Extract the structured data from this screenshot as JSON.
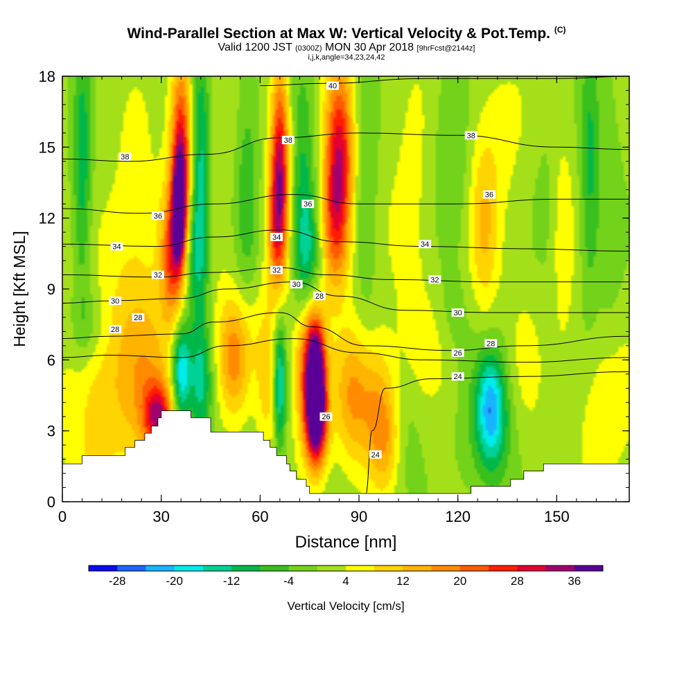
{
  "chart_data": {
    "type": "heatmap",
    "title": "Wind-Parallel Section at Max W: Vertical Velocity & Pot.Temp.",
    "title_tag": "(C)",
    "subtitle": {
      "valid": "Valid 1200 JST",
      "zulu": "(0300Z)",
      "date": "MON 30 Apr 2018",
      "forecast": "[9hrFcst@2144z]"
    },
    "subtitle2": "i,j,k,angle=34,23,24,42",
    "xlabel": "Distance [nm]",
    "ylabel": "Height [Kft MSL]",
    "xlim": [
      0,
      172
    ],
    "ylim": [
      0,
      18
    ],
    "xticks": [
      0,
      30,
      60,
      90,
      120,
      150
    ],
    "yticks": [
      0,
      3,
      6,
      9,
      12,
      15,
      18
    ],
    "grid": false,
    "colorbar": {
      "label": "Vertical Velocity [cm/s]",
      "min": -32,
      "max": 40,
      "step": 4,
      "tick_labels": [
        -28,
        -20,
        -12,
        -4,
        4,
        12,
        20,
        28,
        36
      ],
      "colors": [
        "#0a0af0",
        "#1e64ff",
        "#19b4ff",
        "#00ebeb",
        "#00d296",
        "#00b84a",
        "#39bf1e",
        "#73d21a",
        "#a4e01a",
        "#ffff00",
        "#ffd400",
        "#ffb400",
        "#ff8c00",
        "#ff5a00",
        "#ff1e00",
        "#e10032",
        "#a0006e",
        "#5a0096"
      ]
    },
    "cells": [
      {
        "x": 6,
        "y": 14,
        "v": -12,
        "sx": 2,
        "sy": 4
      },
      {
        "x": 8,
        "y": 7.5,
        "v": -6,
        "sx": 4,
        "sy": 1.2
      },
      {
        "x": 10,
        "y": 4,
        "v": 8,
        "sx": 7,
        "sy": 3
      },
      {
        "x": 26,
        "y": 4.5,
        "v": 10,
        "sx": 6,
        "sy": 2.5
      },
      {
        "x": 29,
        "y": 3.6,
        "v": 24,
        "sx": 3,
        "sy": 1
      },
      {
        "x": 22,
        "y": 8,
        "v": 4,
        "sx": 8,
        "sy": 3
      },
      {
        "x": 36,
        "y": 14.8,
        "v": 28,
        "sx": 2.2,
        "sy": 2.8
      },
      {
        "x": 35.5,
        "y": 12.5,
        "v": 36,
        "sx": 1.2,
        "sy": 1.4
      },
      {
        "x": 33.5,
        "y": 10.5,
        "v": 22,
        "sx": 2.5,
        "sy": 2
      },
      {
        "x": 42,
        "y": 14,
        "v": -14,
        "sx": 2,
        "sy": 4
      },
      {
        "x": 40,
        "y": 10.5,
        "v": -10,
        "sx": 2.5,
        "sy": 2
      },
      {
        "x": 36,
        "y": 5.5,
        "v": -22,
        "sx": 2,
        "sy": 1.5
      },
      {
        "x": 42,
        "y": 5,
        "v": -14,
        "sx": 2.5,
        "sy": 1.8
      },
      {
        "x": 52,
        "y": 6,
        "v": 12,
        "sx": 3,
        "sy": 1.6
      },
      {
        "x": 56,
        "y": 7,
        "v": 6,
        "sx": 6,
        "sy": 2
      },
      {
        "x": 22,
        "y": 11.5,
        "v": 4,
        "sx": 6,
        "sy": 4
      },
      {
        "x": 48,
        "y": 12.5,
        "v": 2,
        "sx": 3,
        "sy": 5
      },
      {
        "x": 56,
        "y": 13,
        "v": -8,
        "sx": 2.5,
        "sy": 4
      },
      {
        "x": 66,
        "y": 14.5,
        "v": 28,
        "sx": 2,
        "sy": 2.8
      },
      {
        "x": 65,
        "y": 11.5,
        "v": 16,
        "sx": 2,
        "sy": 2
      },
      {
        "x": 73,
        "y": 13,
        "v": -10,
        "sx": 2.5,
        "sy": 4
      },
      {
        "x": 75,
        "y": 10,
        "v": -12,
        "sx": 3,
        "sy": 2
      },
      {
        "x": 84,
        "y": 14.5,
        "v": 28,
        "sx": 3,
        "sy": 2.8
      },
      {
        "x": 82,
        "y": 11.5,
        "v": 14,
        "sx": 3,
        "sy": 2
      },
      {
        "x": 92,
        "y": 13,
        "v": -6,
        "sx": 2.5,
        "sy": 4
      },
      {
        "x": 66,
        "y": 5,
        "v": -18,
        "sx": 1.3,
        "sy": 2
      },
      {
        "x": 62,
        "y": 5,
        "v": 8,
        "sx": 2,
        "sy": 2
      },
      {
        "x": 75,
        "y": 6,
        "v": 26,
        "sx": 3,
        "sy": 2.2
      },
      {
        "x": 77,
        "y": 5,
        "v": 38,
        "sx": 1.8,
        "sy": 1.6
      },
      {
        "x": 77,
        "y": 3.2,
        "v": 24,
        "sx": 2.5,
        "sy": 1.4
      },
      {
        "x": 88,
        "y": 4.5,
        "v": 14,
        "sx": 4,
        "sy": 2
      },
      {
        "x": 96,
        "y": 4,
        "v": 12,
        "sx": 4,
        "sy": 2
      },
      {
        "x": 98,
        "y": 2.5,
        "v": 8,
        "sx": 3,
        "sy": 1.5
      },
      {
        "x": 104,
        "y": 3,
        "v": -4,
        "sx": 4,
        "sy": 2.5
      },
      {
        "x": 112,
        "y": 6.5,
        "v": 4,
        "sx": 6,
        "sy": 1.5
      },
      {
        "x": 106,
        "y": 12,
        "v": 4,
        "sx": 5,
        "sy": 5
      },
      {
        "x": 118,
        "y": 15,
        "v": -6,
        "sx": 4,
        "sy": 3
      },
      {
        "x": 132,
        "y": 15.5,
        "v": 4,
        "sx": 6,
        "sy": 2.5
      },
      {
        "x": 128,
        "y": 11.5,
        "v": 10,
        "sx": 3,
        "sy": 2.5
      },
      {
        "x": 130,
        "y": 4,
        "v": -18,
        "sx": 3,
        "sy": 1.6
      },
      {
        "x": 130,
        "y": 3,
        "v": -8,
        "sx": 6,
        "sy": 2.2
      },
      {
        "x": 118,
        "y": 7.5,
        "v": -4,
        "sx": 4,
        "sy": 1.5
      },
      {
        "x": 140,
        "y": 5.5,
        "v": 4,
        "sx": 4,
        "sy": 2.5
      },
      {
        "x": 146,
        "y": 14,
        "v": -2,
        "sx": 3,
        "sy": 4
      },
      {
        "x": 152,
        "y": 11,
        "v": 6,
        "sx": 2,
        "sy": 3
      },
      {
        "x": 160,
        "y": 14,
        "v": -10,
        "sx": 2,
        "sy": 4
      },
      {
        "x": 166,
        "y": 12,
        "v": -4,
        "sx": 3,
        "sy": 5
      },
      {
        "x": 165,
        "y": 4,
        "v": 6,
        "sx": 6,
        "sy": 2.5
      }
    ],
    "terrain": [
      [
        0,
        1.6
      ],
      [
        6,
        1.6
      ],
      [
        6,
        1.95
      ],
      [
        19,
        1.95
      ],
      [
        19,
        2.3
      ],
      [
        22,
        2.3
      ],
      [
        22,
        2.6
      ],
      [
        25,
        2.6
      ],
      [
        25,
        2.9
      ],
      [
        27,
        2.9
      ],
      [
        27,
        3.2
      ],
      [
        29,
        3.2
      ],
      [
        29,
        3.55
      ],
      [
        30,
        3.55
      ],
      [
        30,
        3.85
      ],
      [
        39,
        3.85
      ],
      [
        39,
        3.55
      ],
      [
        45,
        3.55
      ],
      [
        45,
        2.95
      ],
      [
        61,
        2.95
      ],
      [
        61,
        2.6
      ],
      [
        63,
        2.6
      ],
      [
        63,
        2.3
      ],
      [
        65,
        2.3
      ],
      [
        65,
        1.95
      ],
      [
        68,
        1.95
      ],
      [
        68,
        1.6
      ],
      [
        69,
        1.6
      ],
      [
        69,
        1.3
      ],
      [
        71,
        1.3
      ],
      [
        71,
        0.95
      ],
      [
        74,
        0.95
      ],
      [
        74,
        0.65
      ],
      [
        75,
        0.65
      ],
      [
        75,
        0.35
      ],
      [
        124,
        0.35
      ],
      [
        124,
        0.65
      ],
      [
        136,
        0.65
      ],
      [
        136,
        0.95
      ],
      [
        140,
        0.95
      ],
      [
        140,
        1.3
      ],
      [
        146,
        1.3
      ],
      [
        146,
        1.6
      ],
      [
        172,
        1.6
      ]
    ],
    "isentropes": [
      {
        "label": "24",
        "points": [
          [
            92,
            0.3
          ],
          [
            94,
            3
          ],
          [
            98,
            4.8
          ],
          [
            112,
            5.2
          ],
          [
            140,
            5.3
          ],
          [
            172,
            5.5
          ]
        ]
      },
      {
        "label": "26",
        "points": [
          [
            0,
            6.1
          ],
          [
            14,
            6.2
          ],
          [
            36,
            6.1
          ],
          [
            50,
            6.6
          ],
          [
            70,
            6.9
          ],
          [
            90,
            6.3
          ],
          [
            110,
            6.0
          ],
          [
            140,
            5.9
          ],
          [
            172,
            6.1
          ]
        ]
      },
      {
        "label": "28",
        "points": [
          [
            0,
            6.9
          ],
          [
            14,
            7.0
          ],
          [
            36,
            7.1
          ],
          [
            46,
            7.6
          ],
          [
            66,
            8.0
          ],
          [
            76,
            7.4
          ],
          [
            92,
            6.6
          ],
          [
            118,
            6.4
          ],
          [
            140,
            6.6
          ],
          [
            172,
            7.0
          ]
        ]
      },
      {
        "label": "30",
        "points": [
          [
            0,
            8.4
          ],
          [
            14,
            8.5
          ],
          [
            36,
            8.6
          ],
          [
            50,
            9.0
          ],
          [
            70,
            9.3
          ],
          [
            84,
            8.7
          ],
          [
            104,
            8.1
          ],
          [
            130,
            8.0
          ],
          [
            172,
            8.0
          ]
        ]
      },
      {
        "label": "32",
        "points": [
          [
            0,
            9.6
          ],
          [
            28,
            9.5
          ],
          [
            46,
            9.7
          ],
          [
            66,
            9.9
          ],
          [
            80,
            9.6
          ],
          [
            100,
            9.4
          ],
          [
            130,
            9.3
          ],
          [
            172,
            9.3
          ]
        ]
      },
      {
        "label": "34",
        "points": [
          [
            0,
            10.9
          ],
          [
            28,
            10.8
          ],
          [
            46,
            11.2
          ],
          [
            66,
            11.5
          ],
          [
            84,
            11.0
          ],
          [
            110,
            10.8
          ],
          [
            140,
            10.7
          ],
          [
            172,
            10.6
          ]
        ]
      },
      {
        "label": "36",
        "points": [
          [
            0,
            12.4
          ],
          [
            24,
            12.2
          ],
          [
            46,
            12.6
          ],
          [
            70,
            13.0
          ],
          [
            90,
            12.6
          ],
          [
            120,
            12.6
          ],
          [
            150,
            12.8
          ],
          [
            172,
            12.8
          ]
        ]
      },
      {
        "label": "38",
        "points": [
          [
            0,
            14.5
          ],
          [
            20,
            14.4
          ],
          [
            44,
            14.7
          ],
          [
            66,
            15.4
          ],
          [
            90,
            15.6
          ],
          [
            120,
            15.5
          ],
          [
            150,
            15.0
          ],
          [
            172,
            14.9
          ]
        ]
      },
      {
        "label": "40",
        "points": [
          [
            60,
            17.6
          ],
          [
            80,
            17.7
          ],
          [
            110,
            17.9
          ],
          [
            150,
            17.9
          ],
          [
            172,
            18
          ]
        ]
      }
    ],
    "contour_labels": [
      {
        "text": "38",
        "x": 19,
        "y": 14.6
      },
      {
        "text": "36",
        "x": 29,
        "y": 12.1
      },
      {
        "text": "34",
        "x": 16.5,
        "y": 10.8
      },
      {
        "text": "32",
        "x": 29,
        "y": 9.6
      },
      {
        "text": "30",
        "x": 16,
        "y": 8.5
      },
      {
        "text": "28",
        "x": 23,
        "y": 7.8
      },
      {
        "text": "28",
        "x": 16,
        "y": 7.3
      },
      {
        "text": "40",
        "x": 82,
        "y": 17.6
      },
      {
        "text": "38",
        "x": 68.5,
        "y": 15.3
      },
      {
        "text": "36",
        "x": 74.5,
        "y": 12.6
      },
      {
        "text": "34",
        "x": 65,
        "y": 11.2
      },
      {
        "text": "32",
        "x": 65,
        "y": 9.8
      },
      {
        "text": "30",
        "x": 71,
        "y": 9.2
      },
      {
        "text": "28",
        "x": 78,
        "y": 8.7
      },
      {
        "text": "38",
        "x": 124,
        "y": 15.5
      },
      {
        "text": "36",
        "x": 129.5,
        "y": 13.0
      },
      {
        "text": "34",
        "x": 110,
        "y": 10.9
      },
      {
        "text": "32",
        "x": 113,
        "y": 9.4
      },
      {
        "text": "30",
        "x": 120,
        "y": 8.0
      },
      {
        "text": "28",
        "x": 130,
        "y": 6.7
      },
      {
        "text": "26",
        "x": 120,
        "y": 6.3
      },
      {
        "text": "24",
        "x": 120,
        "y": 5.3
      },
      {
        "text": "26",
        "x": 80,
        "y": 3.6
      },
      {
        "text": "24",
        "x": 95,
        "y": 2.0
      }
    ]
  }
}
